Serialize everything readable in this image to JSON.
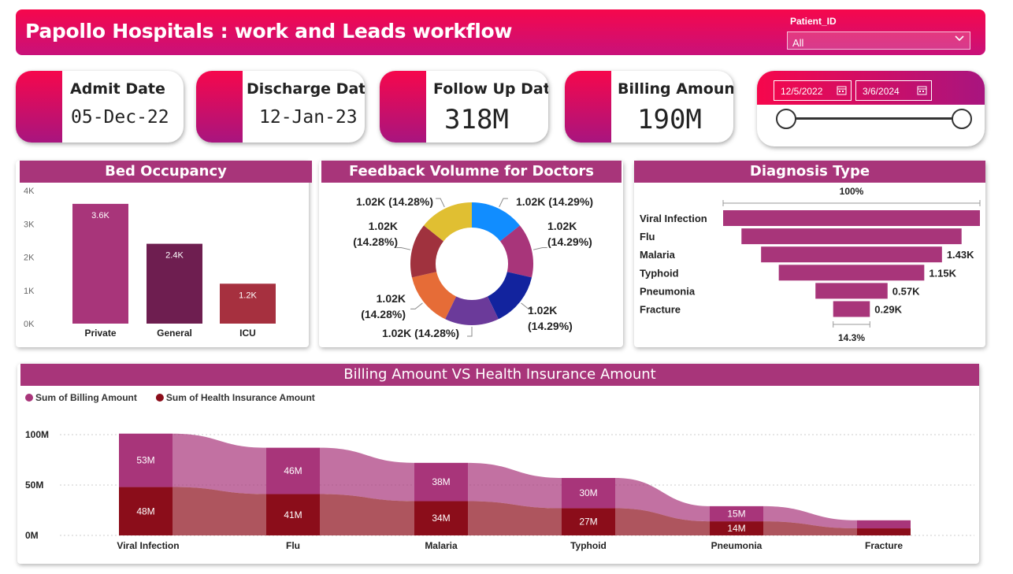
{
  "header": {
    "title": "Papollo Hospitals : work and Leads workflow",
    "slicer_label": "Patient_ID",
    "slicer_value": "All"
  },
  "kpis": {
    "admit": {
      "label": "Admit Date",
      "value": "05-Dec-22"
    },
    "discharge": {
      "label": "Discharge Date",
      "value": "12-Jan-23"
    },
    "followup": {
      "label": "Follow Up Date",
      "value": "318M"
    },
    "billing": {
      "label": "Billing Amount",
      "value": "190M"
    }
  },
  "date_range": {
    "start": "12/5/2022",
    "end": "3/6/2024"
  },
  "colors": {
    "accent": "#a8357a",
    "header_top": "#f6074c",
    "header_bottom": "#c8117a",
    "billing": "#a8357a",
    "insurance": "#8b0d1a"
  },
  "chart_data": [
    {
      "type": "bar",
      "title": "Bed Occupancy",
      "categories": [
        "Private",
        "General",
        "ICU"
      ],
      "values": [
        3600,
        2400,
        1200
      ],
      "data_labels": [
        "3.6K",
        "2.4K",
        "1.2K"
      ],
      "ytick_labels": [
        "4K",
        "3K",
        "2K",
        "1K",
        "0K"
      ],
      "ylim": [
        0,
        4000
      ],
      "bar_colors": [
        "#a8357a",
        "#6e1e50",
        "#a6303f"
      ]
    },
    {
      "type": "pie",
      "title": "Feedback Volumne for Doctors",
      "slices": [
        {
          "value": 1020,
          "label_lines": [
            "1.02K (14.29%)"
          ],
          "color": "#118dff"
        },
        {
          "value": 1020,
          "label_lines": [
            "1.02K",
            "(14.29%)"
          ],
          "color": "#a8357a"
        },
        {
          "value": 1020,
          "label_lines": [
            "1.02K",
            "(14.29%)"
          ],
          "color": "#12239e"
        },
        {
          "value": 1020,
          "label_lines": [
            "1.02K (14.28%)"
          ],
          "color": "#6b3a9a"
        },
        {
          "value": 1020,
          "label_lines": [
            "1.02K",
            "(14.28%)"
          ],
          "color": "#e66c37"
        },
        {
          "value": 1020,
          "label_lines": [
            "1.02K",
            "(14.28%)"
          ],
          "color": "#a0323e"
        },
        {
          "value": 1020,
          "label_lines": [
            "1.02K (14.28%)"
          ],
          "color": "#e0bf32"
        }
      ]
    },
    {
      "type": "bar",
      "title": "Diagnosis Type",
      "categories": [
        "Viral Infection",
        "Flu",
        "Malaria",
        "Typhoid",
        "Pneumonia",
        "Fracture"
      ],
      "values": [
        2030,
        1740,
        1430,
        1150,
        570,
        290
      ],
      "data_labels": [
        "",
        "",
        "1.43K",
        "1.15K",
        "0.57K",
        "0.29K"
      ],
      "top_label": "100%",
      "bottom_label": "14.3%",
      "bar_color": "#a8357a"
    },
    {
      "type": "area",
      "title": "Billing Amount VS Health Insurance Amount",
      "categories": [
        "Viral Infection",
        "Flu",
        "Malaria",
        "Typhoid",
        "Pneumonia",
        "Fracture"
      ],
      "series": [
        {
          "name": "Sum of Billing Amount",
          "values": [
            53,
            46,
            38,
            30,
            15,
            8
          ],
          "labels": [
            "53M",
            "46M",
            "38M",
            "30M",
            "15M",
            ""
          ],
          "color": "#a8357a"
        },
        {
          "name": "Sum of Health Insurance Amount",
          "values": [
            48,
            41,
            34,
            27,
            14,
            7
          ],
          "labels": [
            "48M",
            "41M",
            "34M",
            "27M",
            "14M",
            ""
          ],
          "color": "#8b0d1a"
        }
      ],
      "ytick_labels": [
        "100M",
        "50M",
        "0M"
      ],
      "ylim": [
        0,
        100
      ],
      "legend": "top-left"
    }
  ]
}
